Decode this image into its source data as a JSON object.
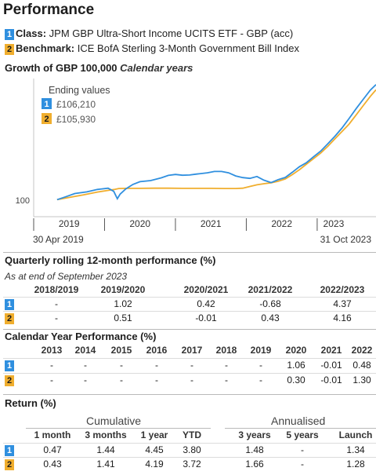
{
  "title": "Performance",
  "legend": {
    "fund": {
      "badge": "1",
      "label": "Class:",
      "name": "JPM GBP Ultra-Short Income UCITS ETF - GBP (acc)",
      "color": "#2f8fdf"
    },
    "benchmark": {
      "badge": "2",
      "label": "Benchmark:",
      "name": "ICE BofA Sterling 3-Month Government Bill Index",
      "color": "#f0ae2e"
    }
  },
  "growth": {
    "title": "Growth of GBP 100,000",
    "subtitle": "Calendar years",
    "ending_label": "Ending values",
    "start_date": "30 Apr 2019",
    "end_date": "31 Oct 2023"
  },
  "chart_data": {
    "type": "line",
    "ytick_label": "100",
    "x_labels": [
      "2019",
      "2020",
      "2021",
      "2022",
      "2023"
    ],
    "grid": false,
    "series": [
      {
        "badge": "1",
        "ending_value": "£106,210",
        "color": "#2f8fdf",
        "x": [
          2019.33,
          2019.45,
          2019.58,
          2019.75,
          2019.9,
          2020.05,
          2020.13,
          2020.18,
          2020.22,
          2020.3,
          2020.4,
          2020.5,
          2020.65,
          2020.8,
          2020.9,
          2021.0,
          2021.1,
          2021.2,
          2021.3,
          2021.45,
          2021.55,
          2021.65,
          2021.75,
          2021.85,
          2021.95,
          2022.05,
          2022.15,
          2022.25,
          2022.35,
          2022.45,
          2022.55,
          2022.65,
          2022.75,
          2022.85,
          2022.95,
          2023.05,
          2023.15,
          2023.25,
          2023.35,
          2023.45,
          2023.55,
          2023.65,
          2023.75,
          2023.83
        ],
        "y": [
          100,
          100.15,
          100.33,
          100.42,
          100.55,
          100.62,
          100.45,
          100.05,
          100.3,
          100.58,
          100.82,
          100.97,
          101.03,
          101.18,
          101.31,
          101.36,
          101.32,
          101.33,
          101.38,
          101.45,
          101.52,
          101.52,
          101.45,
          101.28,
          101.19,
          101.15,
          101.25,
          101.05,
          100.92,
          101.08,
          101.2,
          101.48,
          101.78,
          102.0,
          102.32,
          102.62,
          103.02,
          103.42,
          103.87,
          104.38,
          104.92,
          105.42,
          105.92,
          106.21
        ]
      },
      {
        "badge": "2",
        "ending_value": "£105,930",
        "color": "#f0ae2e",
        "x": [
          2019.33,
          2019.5,
          2019.7,
          2019.9,
          2020.05,
          2020.15,
          2020.2,
          2020.3,
          2020.5,
          2020.7,
          2020.9,
          2021.1,
          2021.3,
          2021.5,
          2021.7,
          2021.85,
          2021.95,
          2022.05,
          2022.15,
          2022.25,
          2022.35,
          2022.45,
          2022.55,
          2022.65,
          2022.75,
          2022.85,
          2022.95,
          2023.05,
          2023.15,
          2023.25,
          2023.35,
          2023.45,
          2023.55,
          2023.65,
          2023.75,
          2023.83
        ],
        "y": [
          100,
          100.12,
          100.26,
          100.41,
          100.5,
          100.56,
          100.6,
          100.61,
          100.61,
          100.62,
          100.62,
          100.61,
          100.61,
          100.61,
          100.6,
          100.6,
          100.62,
          100.71,
          100.8,
          100.86,
          100.91,
          100.99,
          101.12,
          101.35,
          101.62,
          101.92,
          102.22,
          102.52,
          102.88,
          103.28,
          103.68,
          104.08,
          104.58,
          105.08,
          105.58,
          105.93
        ]
      }
    ]
  },
  "quarterly": {
    "title": "Quarterly rolling 12-month performance (%)",
    "note": "As at end of September 2023",
    "headers": [
      "2018/2019",
      "2019/2020",
      "2020/2021",
      "2021/2022",
      "2022/2023"
    ],
    "rows": [
      {
        "badge": "1",
        "values": [
          "-",
          "1.02",
          "0.42",
          "-0.68",
          "4.37"
        ]
      },
      {
        "badge": "2",
        "values": [
          "-",
          "0.51",
          "-0.01",
          "0.43",
          "4.16"
        ]
      }
    ]
  },
  "calendar": {
    "title": "Calendar Year Performance (%)",
    "headers": [
      "2013",
      "2014",
      "2015",
      "2016",
      "2017",
      "2018",
      "2019",
      "2020",
      "2021",
      "2022"
    ],
    "rows": [
      {
        "badge": "1",
        "values": [
          "-",
          "-",
          "-",
          "-",
          "-",
          "-",
          "-",
          "1.06",
          "-0.01",
          "0.48"
        ]
      },
      {
        "badge": "2",
        "values": [
          "-",
          "-",
          "-",
          "-",
          "-",
          "-",
          "-",
          "0.30",
          "-0.01",
          "1.30"
        ]
      }
    ]
  },
  "returns": {
    "title": "Return (%)",
    "group_cumulative": "Cumulative",
    "group_annualised": "Annualised",
    "headers": [
      "1 month",
      "3 months",
      "1 year",
      "YTD",
      "3 years",
      "5 years",
      "Launch"
    ],
    "rows": [
      {
        "badge": "1",
        "values": [
          "0.47",
          "1.44",
          "4.45",
          "3.80",
          "1.48",
          "-",
          "1.34"
        ]
      },
      {
        "badge": "2",
        "values": [
          "0.43",
          "1.41",
          "4.19",
          "3.72",
          "1.66",
          "-",
          "1.28"
        ]
      }
    ]
  }
}
